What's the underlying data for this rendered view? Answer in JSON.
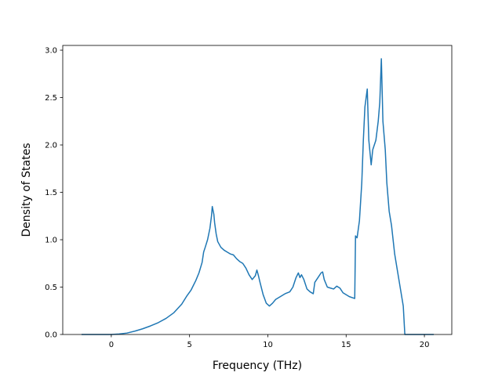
{
  "chart_data": {
    "type": "line",
    "title": "",
    "xlabel": "Frequency (THz)",
    "ylabel": "Density of States",
    "xlim": [
      -3.1,
      21.75
    ],
    "ylim": [
      0,
      3.05
    ],
    "grid": false,
    "xticks": [
      0,
      5,
      10,
      15,
      20
    ],
    "xtick_labels": [
      "0",
      "5",
      "10",
      "15",
      "20"
    ],
    "yticks": [
      0,
      0.5,
      1.0,
      1.5,
      2.0,
      2.5,
      3.0
    ],
    "ytick_labels": [
      "0.0",
      "0.5",
      "1.0",
      "1.5",
      "2.0",
      "2.5",
      "3.0"
    ],
    "colors": {
      "line": "#1f77b4",
      "axes": "#000000"
    },
    "series": [
      {
        "points": [
          [
            -1.9,
            0.0
          ],
          [
            0.0,
            0.0
          ],
          [
            0.5,
            0.005
          ],
          [
            1.0,
            0.015
          ],
          [
            1.5,
            0.035
          ],
          [
            2.0,
            0.06
          ],
          [
            2.5,
            0.09
          ],
          [
            3.0,
            0.125
          ],
          [
            3.5,
            0.17
          ],
          [
            4.0,
            0.23
          ],
          [
            4.5,
            0.32
          ],
          [
            4.8,
            0.4
          ],
          [
            5.1,
            0.47
          ],
          [
            5.4,
            0.57
          ],
          [
            5.6,
            0.65
          ],
          [
            5.8,
            0.76
          ],
          [
            5.9,
            0.87
          ],
          [
            6.0,
            0.92
          ],
          [
            6.15,
            1.0
          ],
          [
            6.3,
            1.12
          ],
          [
            6.4,
            1.25
          ],
          [
            6.45,
            1.35
          ],
          [
            6.55,
            1.27
          ],
          [
            6.6,
            1.18
          ],
          [
            6.7,
            1.06
          ],
          [
            6.8,
            0.98
          ],
          [
            6.9,
            0.95
          ],
          [
            7.0,
            0.92
          ],
          [
            7.2,
            0.89
          ],
          [
            7.4,
            0.87
          ],
          [
            7.6,
            0.85
          ],
          [
            7.8,
            0.84
          ],
          [
            8.0,
            0.8
          ],
          [
            8.2,
            0.77
          ],
          [
            8.4,
            0.75
          ],
          [
            8.6,
            0.7
          ],
          [
            8.8,
            0.63
          ],
          [
            9.0,
            0.58
          ],
          [
            9.2,
            0.62
          ],
          [
            9.3,
            0.68
          ],
          [
            9.4,
            0.62
          ],
          [
            9.5,
            0.55
          ],
          [
            9.7,
            0.42
          ],
          [
            9.9,
            0.33
          ],
          [
            10.1,
            0.3
          ],
          [
            10.3,
            0.33
          ],
          [
            10.5,
            0.37
          ],
          [
            10.8,
            0.4
          ],
          [
            11.1,
            0.43
          ],
          [
            11.4,
            0.45
          ],
          [
            11.6,
            0.5
          ],
          [
            11.8,
            0.6
          ],
          [
            11.95,
            0.65
          ],
          [
            12.05,
            0.6
          ],
          [
            12.15,
            0.63
          ],
          [
            12.3,
            0.58
          ],
          [
            12.5,
            0.48
          ],
          [
            12.7,
            0.45
          ],
          [
            12.9,
            0.43
          ],
          [
            13.0,
            0.55
          ],
          [
            13.2,
            0.6
          ],
          [
            13.4,
            0.65
          ],
          [
            13.5,
            0.66
          ],
          [
            13.6,
            0.58
          ],
          [
            13.8,
            0.5
          ],
          [
            14.0,
            0.49
          ],
          [
            14.2,
            0.48
          ],
          [
            14.4,
            0.51
          ],
          [
            14.6,
            0.49
          ],
          [
            14.8,
            0.44
          ],
          [
            15.2,
            0.4
          ],
          [
            15.55,
            0.38
          ],
          [
            15.6,
            1.04
          ],
          [
            15.7,
            1.02
          ],
          [
            15.85,
            1.2
          ],
          [
            16.0,
            1.6
          ],
          [
            16.1,
            2.05
          ],
          [
            16.2,
            2.4
          ],
          [
            16.35,
            2.59
          ],
          [
            16.45,
            2.05
          ],
          [
            16.6,
            1.79
          ],
          [
            16.7,
            1.95
          ],
          [
            16.9,
            2.05
          ],
          [
            17.05,
            2.25
          ],
          [
            17.15,
            2.45
          ],
          [
            17.25,
            2.91
          ],
          [
            17.35,
            2.25
          ],
          [
            17.5,
            1.95
          ],
          [
            17.6,
            1.6
          ],
          [
            17.75,
            1.3
          ],
          [
            17.9,
            1.15
          ],
          [
            18.1,
            0.85
          ],
          [
            18.3,
            0.65
          ],
          [
            18.5,
            0.45
          ],
          [
            18.65,
            0.3
          ],
          [
            18.75,
            0.0
          ],
          [
            20.6,
            0.0
          ]
        ]
      }
    ]
  }
}
